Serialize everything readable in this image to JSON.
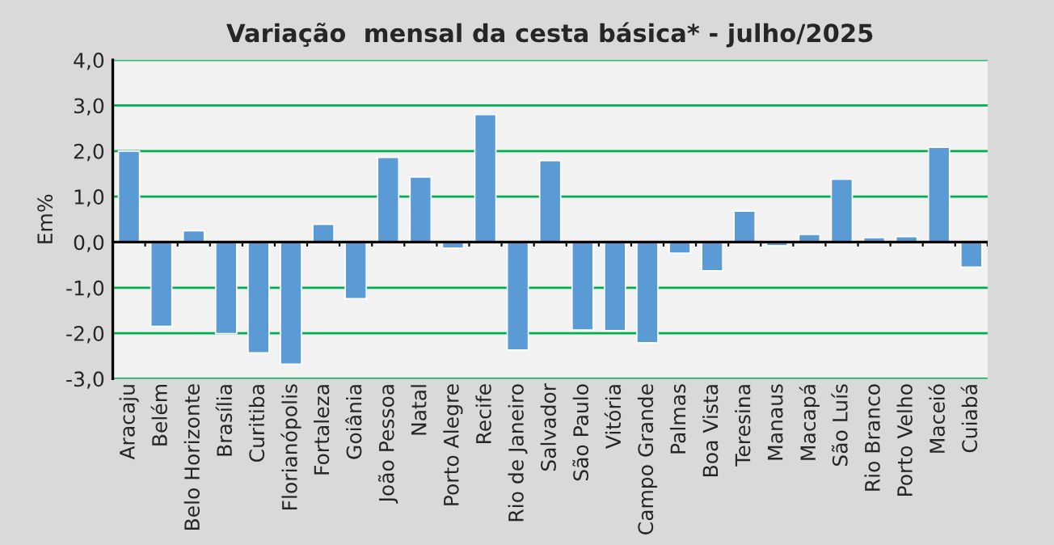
{
  "chart_data": {
    "type": "bar",
    "title": "Variação  mensal da cesta básica* - julho/2025",
    "ylabel": "Em%",
    "categories": [
      "Aracaju",
      "Belém",
      "Belo Horizonte",
      "Brasília",
      "Curitiba",
      "Florianópolis",
      "Fortaleza",
      "Goiânia",
      "João Pessoa",
      "Natal",
      "Porto Alegre",
      "Recife",
      "Rio de Janeiro",
      "Salvador",
      "São Paulo",
      "Vitória",
      "Campo Grande",
      "Palmas",
      "Boa Vista",
      "Teresina",
      "Manaus",
      "Macapá",
      "São Luís",
      "Rio Branco",
      "Porto Velho",
      "Maceió",
      "Cuiabá"
    ],
    "values": [
      2.0,
      -1.85,
      0.25,
      -2.01,
      -2.43,
      -2.68,
      0.39,
      -1.24,
      1.86,
      1.43,
      -0.13,
      2.8,
      -2.37,
      1.79,
      -1.93,
      -1.94,
      -2.21,
      -0.24,
      -0.63,
      0.68,
      -0.08,
      0.17,
      1.38,
      0.1,
      0.12,
      2.08,
      -0.55
    ],
    "color": "#5b9bd5",
    "ylim": [
      -3,
      4
    ],
    "yticks": [
      {
        "value": -3,
        "label": "-3,0"
      },
      {
        "value": -2,
        "label": "-2,0"
      },
      {
        "value": -1,
        "label": "-1,0"
      },
      {
        "value": 0,
        "label": "0,0"
      },
      {
        "value": 1,
        "label": "1,0"
      },
      {
        "value": 2,
        "label": "2,0"
      },
      {
        "value": 3,
        "label": "3,0"
      },
      {
        "value": 4,
        "label": "4,0"
      }
    ],
    "grid": "y"
  }
}
